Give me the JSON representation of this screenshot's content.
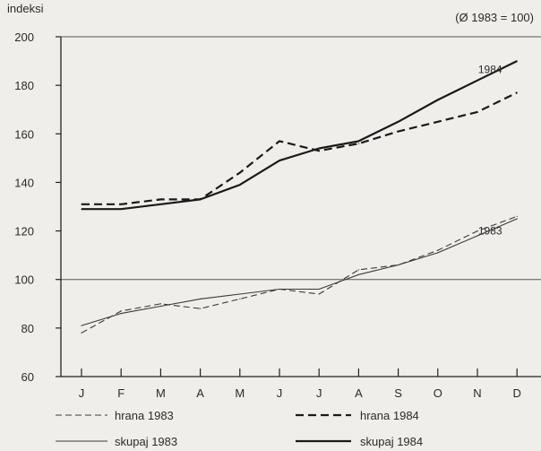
{
  "chart_data": {
    "type": "line",
    "ylabel": "indeksi",
    "note": "(Ø 1983 = 100)",
    "categories": [
      "J",
      "F",
      "M",
      "A",
      "M",
      "J",
      "J",
      "A",
      "S",
      "O",
      "N",
      "D"
    ],
    "ylim": [
      60,
      200
    ],
    "yticks": [
      60,
      80,
      100,
      120,
      140,
      160,
      180,
      200
    ],
    "reference_lines": [
      100,
      200
    ],
    "series": [
      {
        "name": "hrana 1983",
        "color": "#3a3a3a",
        "style": "thin-dashed",
        "values": [
          78,
          87,
          90,
          88,
          92,
          96,
          94,
          104,
          106,
          112,
          120,
          126
        ],
        "label": "1983"
      },
      {
        "name": "skupaj 1983",
        "color": "#3a3a3a",
        "style": "thin-solid",
        "values": [
          81,
          86,
          89,
          92,
          94,
          96,
          96,
          102,
          106,
          111,
          118,
          125
        ],
        "label": ""
      },
      {
        "name": "hrana 1984",
        "color": "#1a1a1a",
        "style": "thick-dashed",
        "values": [
          131,
          131,
          133,
          133,
          144,
          157,
          153,
          156,
          161,
          165,
          169,
          177
        ],
        "label": "1984"
      },
      {
        "name": "skupaj 1984",
        "color": "#1a1a1a",
        "style": "thick-solid",
        "values": [
          129,
          129,
          131,
          133,
          139,
          149,
          154,
          157,
          165,
          174,
          182,
          190
        ],
        "label": ""
      }
    ],
    "legend": [
      {
        "label": "hrana 1983",
        "series": 0
      },
      {
        "label": "hrana 1984",
        "series": 2
      },
      {
        "label": "skupaj 1983",
        "series": 1
      },
      {
        "label": "skupaj 1984",
        "series": 3
      }
    ]
  }
}
